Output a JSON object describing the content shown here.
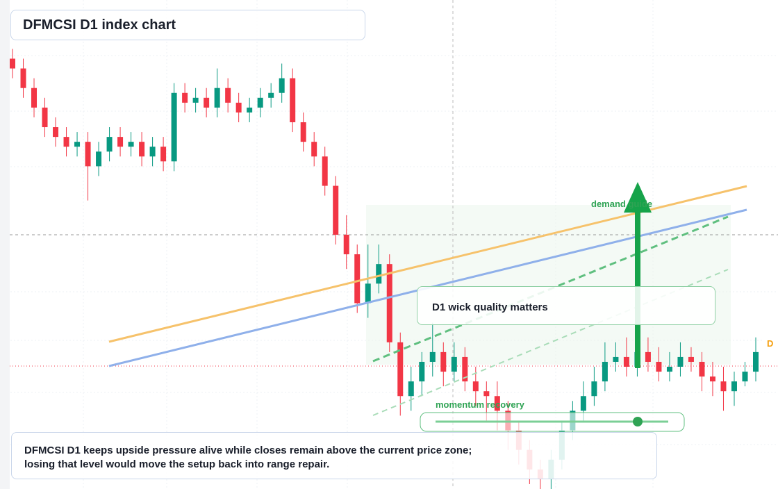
{
  "chart_data": {
    "type": "candlestick",
    "title": "DFMCSI D1 index chart",
    "annotations": [
      "D1 wick quality matters",
      "demand guide",
      "momentum recovery",
      "D"
    ],
    "caption": [
      "DFMCSI D1 keeps upside pressure alive while closes remain above the current price zone;",
      "losing that level would move the setup back into range repair."
    ],
    "up_color": "#089981",
    "down_color": "#f23645",
    "ylim": [
      0,
      100
    ],
    "open": [
      88,
      86,
      82,
      78,
      74,
      72,
      70,
      71,
      66,
      69,
      72,
      70,
      71,
      68,
      70,
      67,
      81,
      79,
      80,
      78,
      82,
      79,
      77,
      78,
      80,
      81,
      84,
      75,
      71,
      68,
      62,
      52,
      48,
      38,
      42,
      46,
      30,
      19,
      22,
      26,
      28,
      24,
      27,
      22,
      20,
      19,
      16,
      12,
      8,
      4,
      2,
      6,
      12,
      16,
      19,
      22,
      26,
      27,
      25,
      28,
      26,
      24,
      25,
      27,
      26,
      23,
      22,
      20,
      22,
      24
    ],
    "high": [
      90,
      88,
      84,
      80,
      76,
      74,
      73,
      73,
      71,
      74,
      74,
      73,
      73,
      72,
      72,
      83,
      83,
      82,
      82,
      86,
      84,
      81,
      80,
      82,
      83,
      87,
      86,
      77,
      73,
      70,
      64,
      56,
      50,
      50,
      50,
      48,
      32,
      25,
      28,
      34,
      30,
      30,
      29,
      25,
      22,
      22,
      18,
      14,
      10,
      6,
      8,
      14,
      18,
      22,
      25,
      30,
      30,
      31,
      33,
      31,
      29,
      28,
      30,
      29,
      28,
      26,
      25,
      24,
      26,
      31
    ],
    "low": [
      84,
      80,
      76,
      72,
      70,
      68,
      68,
      59,
      64,
      67,
      68,
      68,
      66,
      66,
      65,
      65,
      77,
      77,
      76,
      76,
      77,
      75,
      75,
      76,
      78,
      79,
      73,
      69,
      66,
      60,
      50,
      45,
      36,
      35,
      40,
      28,
      15,
      16,
      19,
      23,
      21,
      22,
      20,
      17,
      14,
      12,
      8,
      5,
      1,
      0,
      0,
      4,
      10,
      14,
      17,
      20,
      24,
      23,
      23,
      24,
      22,
      22,
      23,
      24,
      20,
      19,
      16,
      17,
      21,
      22
    ],
    "close": [
      86,
      82,
      78,
      74,
      72,
      70,
      71,
      66,
      69,
      72,
      70,
      71,
      68,
      70,
      67,
      81,
      79,
      80,
      78,
      82,
      79,
      77,
      78,
      80,
      81,
      84,
      75,
      71,
      68,
      62,
      52,
      48,
      38,
      42,
      46,
      30,
      19,
      22,
      26,
      28,
      24,
      27,
      22,
      20,
      19,
      16,
      12,
      8,
      4,
      2,
      6,
      12,
      16,
      19,
      22,
      26,
      27,
      25,
      28,
      26,
      24,
      25,
      27,
      26,
      23,
      22,
      20,
      22,
      24,
      28
    ]
  }
}
